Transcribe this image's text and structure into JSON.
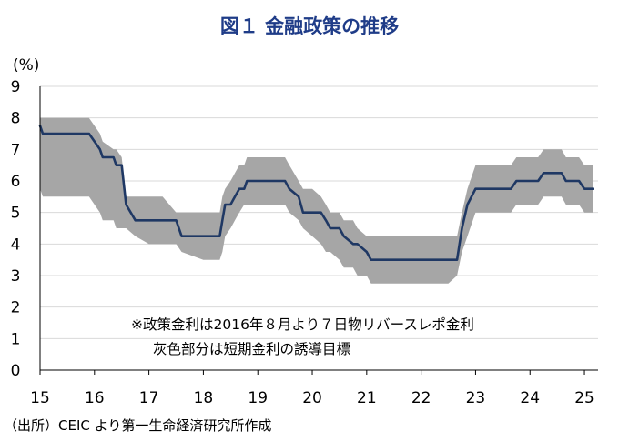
{
  "chart_data": {
    "type": "line",
    "title": "図１ 金融政策の推移",
    "ylabel": "(%)",
    "xlabel": "",
    "ylim": [
      0,
      9
    ],
    "xlim": [
      15,
      25.25
    ],
    "y_ticks": [
      "0",
      "1",
      "2",
      "3",
      "4",
      "5",
      "6",
      "7",
      "8",
      "9"
    ],
    "x_ticks": [
      "15",
      "16",
      "17",
      "18",
      "19",
      "20",
      "21",
      "22",
      "23",
      "24",
      "25"
    ],
    "grid": true,
    "legend": "none",
    "annotations": [
      "※政策金利は2016年８月より７日物リバースレポ金利",
      "灰色部分は短期金利の誘導目標"
    ],
    "source": "（出所）CEIC より第一生命経済研究所作成",
    "colors": {
      "line": "#1f3864",
      "band": "#a6a6a6",
      "grid": "#d9d9d9"
    },
    "series": [
      {
        "type": "line",
        "x": [
          15.0,
          15.05,
          15.9,
          16.1,
          16.15,
          16.35,
          16.4,
          16.5,
          16.58,
          16.75,
          17.0,
          17.25,
          17.5,
          17.6,
          18.0,
          18.3,
          18.35,
          18.4,
          18.5,
          18.58,
          18.66,
          18.75,
          18.8,
          18.85,
          19.0,
          19.5,
          19.58,
          19.75,
          19.83,
          20.0,
          20.16,
          20.25,
          20.33,
          20.5,
          20.58,
          20.75,
          20.83,
          21.0,
          21.08,
          22.0,
          22.5,
          22.66,
          22.75,
          22.85,
          23.0,
          23.65,
          23.75,
          24.1,
          24.15,
          24.25,
          24.58,
          24.66,
          24.9,
          25.0,
          25.15
        ],
        "y": [
          7.75,
          7.5,
          7.5,
          7.0,
          6.75,
          6.75,
          6.5,
          6.5,
          5.25,
          4.75,
          4.75,
          4.75,
          4.75,
          4.25,
          4.25,
          4.25,
          4.75,
          5.25,
          5.25,
          5.5,
          5.75,
          5.75,
          6.0,
          6.0,
          6.0,
          6.0,
          5.75,
          5.5,
          5.0,
          5.0,
          5.0,
          4.75,
          4.5,
          4.5,
          4.25,
          4.0,
          4.0,
          3.75,
          3.5,
          3.5,
          3.5,
          3.5,
          4.5,
          5.25,
          5.75,
          5.75,
          6.0,
          6.0,
          6.0,
          6.25,
          6.25,
          6.0,
          6.0,
          5.75,
          5.75
        ]
      },
      {
        "type": "band",
        "x": [
          15.0,
          15.05,
          15.9,
          16.1,
          16.15,
          16.35,
          16.4,
          16.5,
          16.58,
          16.75,
          17.0,
          17.25,
          17.5,
          17.6,
          18.0,
          18.3,
          18.35,
          18.4,
          18.5,
          18.58,
          18.66,
          18.75,
          18.8,
          18.85,
          19.0,
          19.5,
          19.58,
          19.75,
          19.83,
          20.0,
          20.16,
          20.25,
          20.33,
          20.5,
          20.58,
          20.75,
          20.83,
          21.0,
          21.08,
          22.0,
          22.5,
          22.66,
          22.75,
          22.85,
          23.0,
          23.65,
          23.75,
          24.1,
          24.15,
          24.25,
          24.58,
          24.66,
          24.9,
          25.0,
          25.15
        ],
        "lower": [
          5.75,
          5.5,
          5.5,
          5.0,
          4.75,
          4.75,
          4.5,
          4.5,
          4.5,
          4.25,
          4.0,
          4.0,
          4.0,
          3.75,
          3.5,
          3.5,
          3.75,
          4.25,
          4.5,
          4.75,
          5.0,
          5.25,
          5.25,
          5.25,
          5.25,
          5.25,
          5.0,
          4.75,
          4.5,
          4.25,
          4.0,
          3.75,
          3.75,
          3.5,
          3.25,
          3.25,
          3.0,
          3.0,
          2.75,
          2.75,
          2.75,
          3.0,
          3.75,
          4.25,
          5.0,
          5.0,
          5.25,
          5.25,
          5.25,
          5.5,
          5.5,
          5.25,
          5.25,
          5.0,
          5.0
        ],
        "upper": [
          8.0,
          8.0,
          8.0,
          7.5,
          7.25,
          7.0,
          7.0,
          6.75,
          5.5,
          5.5,
          5.5,
          5.5,
          5.0,
          5.0,
          5.0,
          5.0,
          5.5,
          5.75,
          6.0,
          6.25,
          6.5,
          6.5,
          6.75,
          6.75,
          6.75,
          6.75,
          6.5,
          6.0,
          5.75,
          5.75,
          5.5,
          5.25,
          5.0,
          5.0,
          4.75,
          4.75,
          4.5,
          4.25,
          4.25,
          4.25,
          4.25,
          4.25,
          5.0,
          5.75,
          6.5,
          6.5,
          6.75,
          6.75,
          6.75,
          7.0,
          7.0,
          6.75,
          6.75,
          6.5,
          6.5
        ]
      }
    ]
  }
}
